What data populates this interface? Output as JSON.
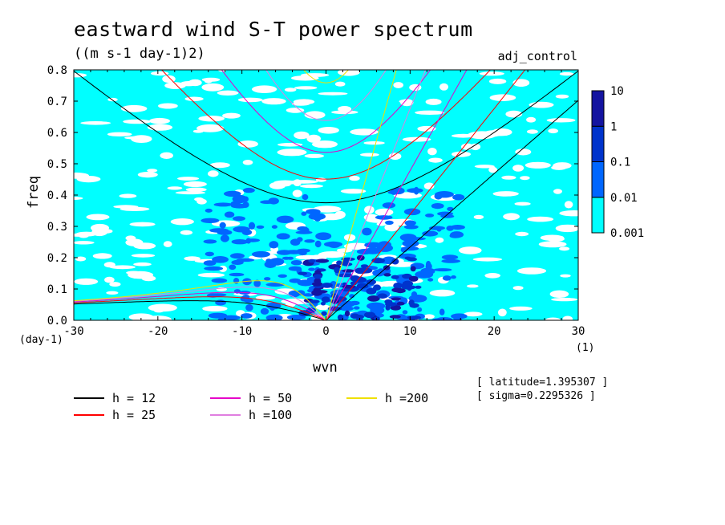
{
  "header": {
    "title": "eastward wind S-T power spectrum",
    "subtitle": "((m s-1 day-1)2)",
    "run_name": "adj_control"
  },
  "info": {
    "latitude": "[ latitude=1.395307 ]",
    "sigma": "[ sigma=0.2295326 ]"
  },
  "chart_data": {
    "type": "heatmap",
    "title": "eastward wind S-T power spectrum",
    "subtitle": "((m s-1 day-1)2)",
    "xlabel": "wvn",
    "ylabel": "freq",
    "x_unit": "(1)",
    "y_unit": "(day-1)",
    "xlim": [
      -30,
      30
    ],
    "ylim": [
      0,
      0.8
    ],
    "x_ticks": [
      -30,
      -20,
      -10,
      0,
      10,
      20,
      30
    ],
    "x_tick_labels": [
      "-30",
      "-20",
      "-10",
      "0",
      "10",
      "20",
      "30"
    ],
    "y_ticks": [
      0.0,
      0.1,
      0.2,
      0.3,
      0.4,
      0.5,
      0.6,
      0.7,
      0.8
    ],
    "y_tick_labels": [
      "0.0",
      "0.1",
      "0.2",
      "0.3",
      "0.4",
      "0.5",
      "0.6",
      "0.7",
      "0.8"
    ],
    "colorbar": {
      "levels": [
        "0.001",
        "0.01",
        "0.1",
        "1",
        "10"
      ],
      "colors": [
        "#00ffff",
        "#0066ff",
        "#0033cc",
        "#1414a0",
        "#4b1fa8"
      ]
    },
    "background_color": "#00ffff",
    "dispersion_curves": [
      {
        "name": "h = 12",
        "h": 12,
        "color": "#000000"
      },
      {
        "name": "h = 25",
        "h": 25,
        "color": "#ff0000"
      },
      {
        "name": "h = 50",
        "h": 50,
        "color": "#e600c8"
      },
      {
        "name": "h =100",
        "h": 100,
        "color": "#e07ee0"
      },
      {
        "name": "h =200",
        "h": 200,
        "color": "#f0e000"
      }
    ]
  }
}
